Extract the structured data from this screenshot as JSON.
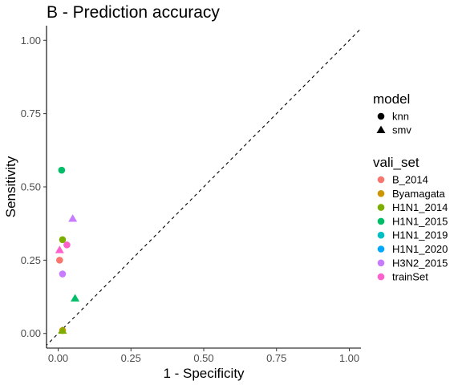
{
  "chart_data": {
    "type": "scatter",
    "title": "B - Prediction accuracy",
    "xlabel": "1 - Specificity",
    "ylabel": "Sensitivity",
    "xlim": [
      -0.04,
      1.04
    ],
    "ylim": [
      -0.05,
      1.05
    ],
    "xticks": [
      0.0,
      0.25,
      0.5,
      0.75,
      1.0
    ],
    "yticks": [
      0.0,
      0.25,
      0.5,
      0.75,
      1.0
    ],
    "xtick_labels": [
      "0.00",
      "0.25",
      "0.50",
      "0.75",
      "1.00"
    ],
    "ytick_labels": [
      "0.00",
      "0.25",
      "0.50",
      "0.75",
      "1.00"
    ],
    "grid": false,
    "reference_line": {
      "style": "dashed",
      "from": [
        0,
        0
      ],
      "to": [
        1,
        1
      ]
    },
    "legend_placement": "right",
    "shape_legend": {
      "title": "model",
      "items": [
        {
          "label": "knn",
          "shape": "circle"
        },
        {
          "label": "smv",
          "shape": "triangle"
        }
      ]
    },
    "color_legend": {
      "title": "vali_set",
      "items": [
        {
          "label": "B_2014",
          "color": "#F8766D"
        },
        {
          "label": "Byamagata",
          "color": "#CD9600"
        },
        {
          "label": "H1N1_2014",
          "color": "#7CAE00"
        },
        {
          "label": "H1N1_2015",
          "color": "#00BE67"
        },
        {
          "label": "H1N1_2019",
          "color": "#00BFC4"
        },
        {
          "label": "H1N1_2020",
          "color": "#00A9FF"
        },
        {
          "label": "H3N2_2015",
          "color": "#C77CFF"
        },
        {
          "label": "trainSet",
          "color": "#FF61CC"
        }
      ]
    },
    "points": [
      {
        "vali_set": "B_2014",
        "model": "knn",
        "x": 0.005,
        "y": 0.25
      },
      {
        "vali_set": "trainSet",
        "model": "smv",
        "x": 0.005,
        "y": 0.285
      },
      {
        "vali_set": "H1N1_2015",
        "model": "knn",
        "x": 0.012,
        "y": 0.557
      },
      {
        "vali_set": "H1N1_2014",
        "model": "knn",
        "x": 0.015,
        "y": 0.32
      },
      {
        "vali_set": "H3N2_2015",
        "model": "knn",
        "x": 0.015,
        "y": 0.203
      },
      {
        "vali_set": "trainSet",
        "model": "knn",
        "x": 0.03,
        "y": 0.302
      },
      {
        "vali_set": "H3N2_2015",
        "model": "smv",
        "x": 0.05,
        "y": 0.392
      },
      {
        "vali_set": "H1N1_2015",
        "model": "smv",
        "x": 0.058,
        "y": 0.12
      },
      {
        "vali_set": "Byamagata",
        "model": "knn",
        "x": 0.015,
        "y": 0.01
      },
      {
        "vali_set": "H1N1_2014",
        "model": "smv",
        "x": 0.015,
        "y": 0.01
      }
    ]
  }
}
